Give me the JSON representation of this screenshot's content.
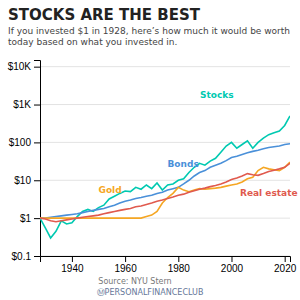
{
  "chart_data": {
    "type": "line",
    "title": "STOCKS ARE THE BEST",
    "subtitle": "If you invested $1 in 1928, here’s how much it would be worth today based on what you invested in.",
    "annotations": [
      "Source: NYU Stern",
      "ⓂPERSONALFINANCECLUB"
    ],
    "x": [
      1928,
      1930,
      1932,
      1934,
      1936,
      1938,
      1940,
      1942,
      1944,
      1946,
      1948,
      1950,
      1952,
      1954,
      1956,
      1958,
      1960,
      1962,
      1964,
      1966,
      1968,
      1970,
      1972,
      1974,
      1976,
      1978,
      1980,
      1982,
      1984,
      1986,
      1988,
      1990,
      1992,
      1994,
      1996,
      1998,
      2000,
      2002,
      2004,
      2006,
      2008,
      2010,
      2012,
      2014,
      2016,
      2018,
      2020,
      2022
    ],
    "series": [
      {
        "name": "Stocks",
        "color": "#00c9b1",
        "values": [
          1.0,
          0.55,
          0.3,
          0.45,
          0.85,
          0.7,
          0.75,
          1.1,
          1.5,
          1.7,
          1.5,
          1.9,
          2.2,
          3.2,
          3.8,
          4.5,
          5.2,
          5.0,
          6.5,
          5.8,
          7.5,
          6.0,
          8.5,
          5.5,
          7.5,
          8.0,
          10.0,
          11.0,
          16.0,
          22.0,
          28.0,
          25.0,
          32.0,
          38.0,
          55.0,
          80.0,
          100.0,
          70.0,
          88.0,
          110.0,
          70.0,
          100.0,
          130.0,
          160.0,
          180.0,
          200.0,
          280.0,
          500.0
        ]
      },
      {
        "name": "Bonds",
        "color": "#4a90d9",
        "values": [
          1.0,
          1.0,
          1.05,
          1.1,
          1.15,
          1.2,
          1.25,
          1.3,
          1.4,
          1.5,
          1.6,
          1.7,
          1.8,
          2.0,
          2.2,
          2.5,
          2.8,
          3.0,
          3.3,
          3.5,
          3.8,
          4.0,
          4.5,
          4.8,
          5.5,
          6.0,
          6.5,
          8.0,
          10.0,
          13.0,
          16.0,
          18.0,
          22.0,
          25.0,
          28.0,
          33.0,
          40.0,
          43.0,
          48.0,
          53.0,
          58.0,
          62.0,
          68.0,
          73.0,
          77.0,
          80.0,
          88.0,
          92.0
        ]
      },
      {
        "name": "Gold",
        "color": "#f5a623",
        "values": [
          1.0,
          1.0,
          1.0,
          1.0,
          1.0,
          1.0,
          1.0,
          1.0,
          1.0,
          1.0,
          1.0,
          1.0,
          1.0,
          1.0,
          1.0,
          1.0,
          1.0,
          1.0,
          1.0,
          1.0,
          1.1,
          1.2,
          1.5,
          2.5,
          3.5,
          4.5,
          6.5,
          5.5,
          5.0,
          5.5,
          6.0,
          5.8,
          6.0,
          6.2,
          6.5,
          7.0,
          7.5,
          8.0,
          9.0,
          11.0,
          12.0,
          18.0,
          22.0,
          20.0,
          19.0,
          18.0,
          22.0,
          30.0
        ]
      },
      {
        "name": "Real estate",
        "color": "#e05a4e",
        "values": [
          1.0,
          0.95,
          0.85,
          0.8,
          0.85,
          0.9,
          0.95,
          1.0,
          1.05,
          1.1,
          1.15,
          1.2,
          1.3,
          1.4,
          1.5,
          1.6,
          1.7,
          1.8,
          2.0,
          2.1,
          2.3,
          2.5,
          2.8,
          3.0,
          3.3,
          3.6,
          4.0,
          4.3,
          4.8,
          5.3,
          5.8,
          6.2,
          6.8,
          7.3,
          8.0,
          9.0,
          10.5,
          11.5,
          13.0,
          15.0,
          14.0,
          13.5,
          15.0,
          17.0,
          18.5,
          20.0,
          22.0,
          28.0
        ]
      }
    ],
    "xlim": [
      1928,
      2022
    ],
    "xticks": [
      1940,
      1960,
      1980,
      2000,
      2020
    ],
    "ylim": [
      0.1,
      15000
    ],
    "yticks": [
      {
        "value": 0.1,
        "label": "$0.1"
      },
      {
        "value": 1,
        "label": "$1"
      },
      {
        "value": 10,
        "label": "$10"
      },
      {
        "value": 100,
        "label": "$100"
      },
      {
        "value": 1000,
        "label": "$1K"
      },
      {
        "value": 10000,
        "label": "$10K"
      }
    ],
    "log": "y",
    "grid": true
  }
}
